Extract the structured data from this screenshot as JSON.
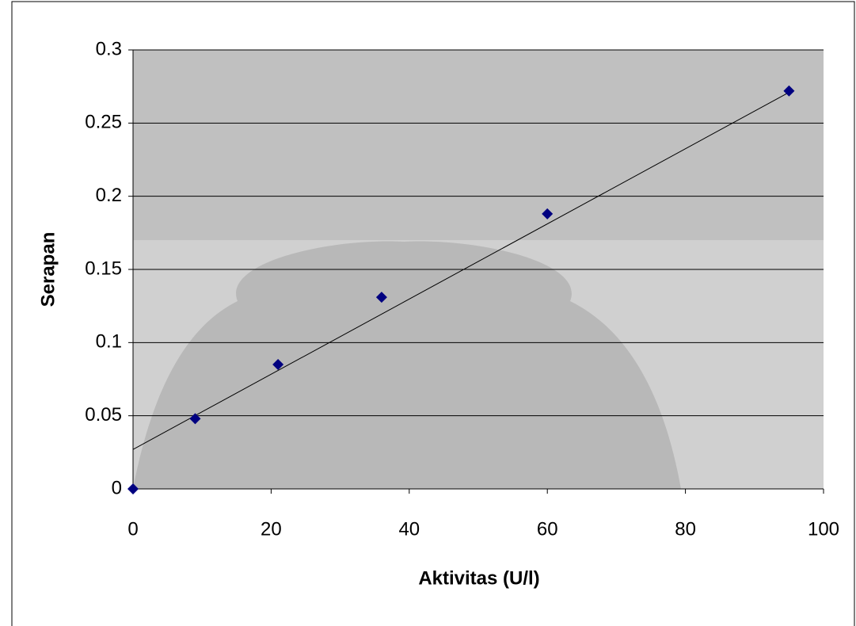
{
  "chart_data": {
    "type": "scatter",
    "x_label": "Aktivitas (U/l)",
    "y_label": "Serapan",
    "x": [
      0,
      9,
      21,
      36,
      60,
      95
    ],
    "values": [
      0,
      0.048,
      0.085,
      0.131,
      0.188,
      0.272
    ],
    "color": "#000080",
    "trendline": {
      "x": [
        0,
        95
      ],
      "y": [
        0.027,
        0.271
      ],
      "color": "#000000"
    },
    "xlim": [
      0,
      100
    ],
    "xticks": [
      0,
      20,
      40,
      60,
      80,
      100
    ],
    "ylim": [
      0,
      0.3
    ],
    "yticks": [
      0,
      0.05,
      0.1,
      0.15,
      0.2,
      0.25,
      0.3
    ],
    "grid": true
  }
}
